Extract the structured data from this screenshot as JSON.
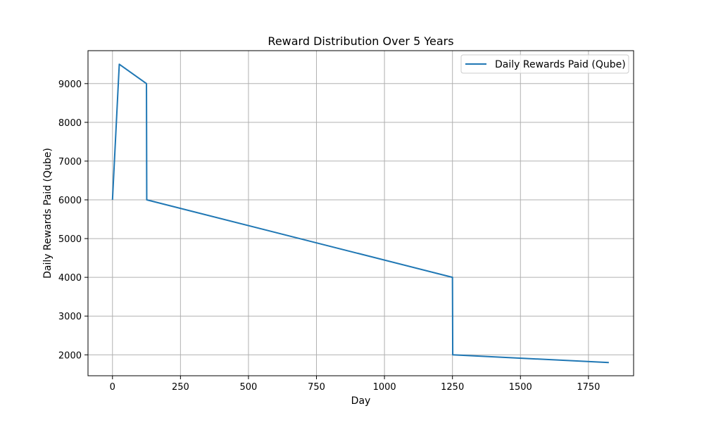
{
  "chart_data": {
    "type": "line",
    "title": "Reward Distribution Over 5 Years",
    "xlabel": "Day",
    "ylabel": "Daily Rewards Paid (Qube)",
    "xlim": [
      -90,
      1916
    ],
    "ylim": [
      1460,
      9850
    ],
    "xticks": [
      0,
      250,
      500,
      750,
      1000,
      1250,
      1500,
      1750
    ],
    "yticks": [
      2000,
      3000,
      4000,
      5000,
      6000,
      7000,
      8000,
      9000
    ],
    "grid": true,
    "legend_position": "upper right",
    "series": [
      {
        "name": "Daily Rewards Paid (Qube)",
        "color": "#1f77b4",
        "x": [
          0,
          25,
          125,
          126,
          1250,
          1251,
          1825
        ],
        "y": [
          6000,
          9500,
          9000,
          6000,
          4000,
          2000,
          1800
        ]
      }
    ]
  }
}
